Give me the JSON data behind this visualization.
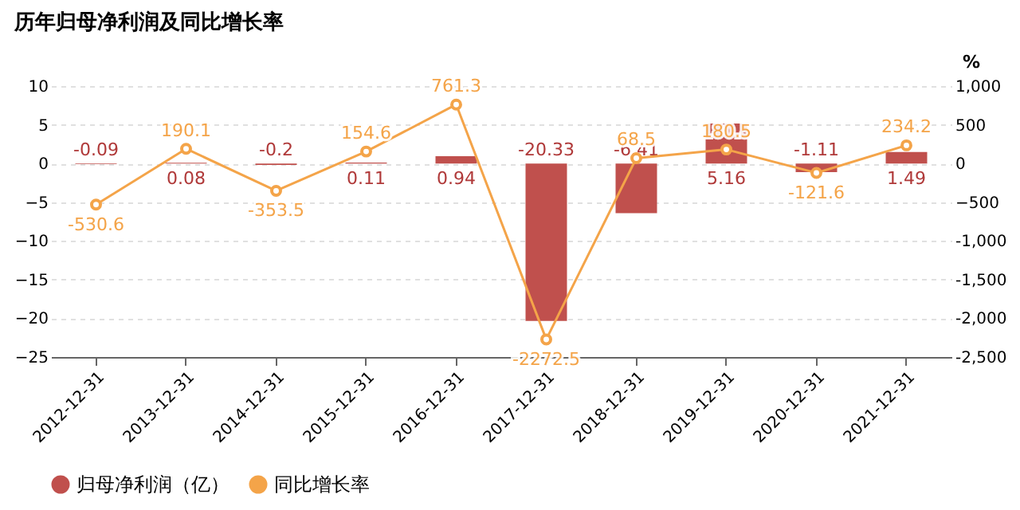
{
  "chart_data": {
    "type": "bar",
    "title": "历年归母净利润及同比增长率",
    "y2label": "%",
    "categories": [
      "2012-12-31",
      "2013-12-31",
      "2014-12-31",
      "2015-12-31",
      "2016-12-31",
      "2017-12-31",
      "2018-12-31",
      "2019-12-31",
      "2020-12-31",
      "2021-12-31"
    ],
    "series": [
      {
        "name": "归母净利润（亿）",
        "color": "#c0504d",
        "values": [
          -0.09,
          0.08,
          -0.2,
          0.11,
          0.94,
          -20.33,
          -6.41,
          5.16,
          -1.11,
          1.49
        ]
      },
      {
        "name": "同比增长率",
        "type": "line",
        "axis": "y2",
        "color": "#f4a449",
        "marker": "circle",
        "values": [
          -530.6,
          190.1,
          -353.5,
          154.6,
          761.3,
          -2272.5,
          68.5,
          180.5,
          -121.6,
          234.2
        ]
      }
    ],
    "ylim": [
      -25,
      10
    ],
    "yticks": [
      -25,
      -20,
      -15,
      -10,
      -5,
      0,
      5,
      10
    ],
    "y2lim": [
      -2500,
      1000
    ],
    "y2ticks": [
      {
        "value": -2500,
        "label": "-2,500"
      },
      {
        "value": -2000,
        "label": "-2,000"
      },
      {
        "value": -1500,
        "label": "-1,500"
      },
      {
        "value": -1000,
        "label": "-1,000"
      },
      -500,
      0,
      500,
      {
        "value": 1000,
        "label": "1,000"
      }
    ],
    "grid": "y",
    "legend": "bottom",
    "data_labels": true
  }
}
